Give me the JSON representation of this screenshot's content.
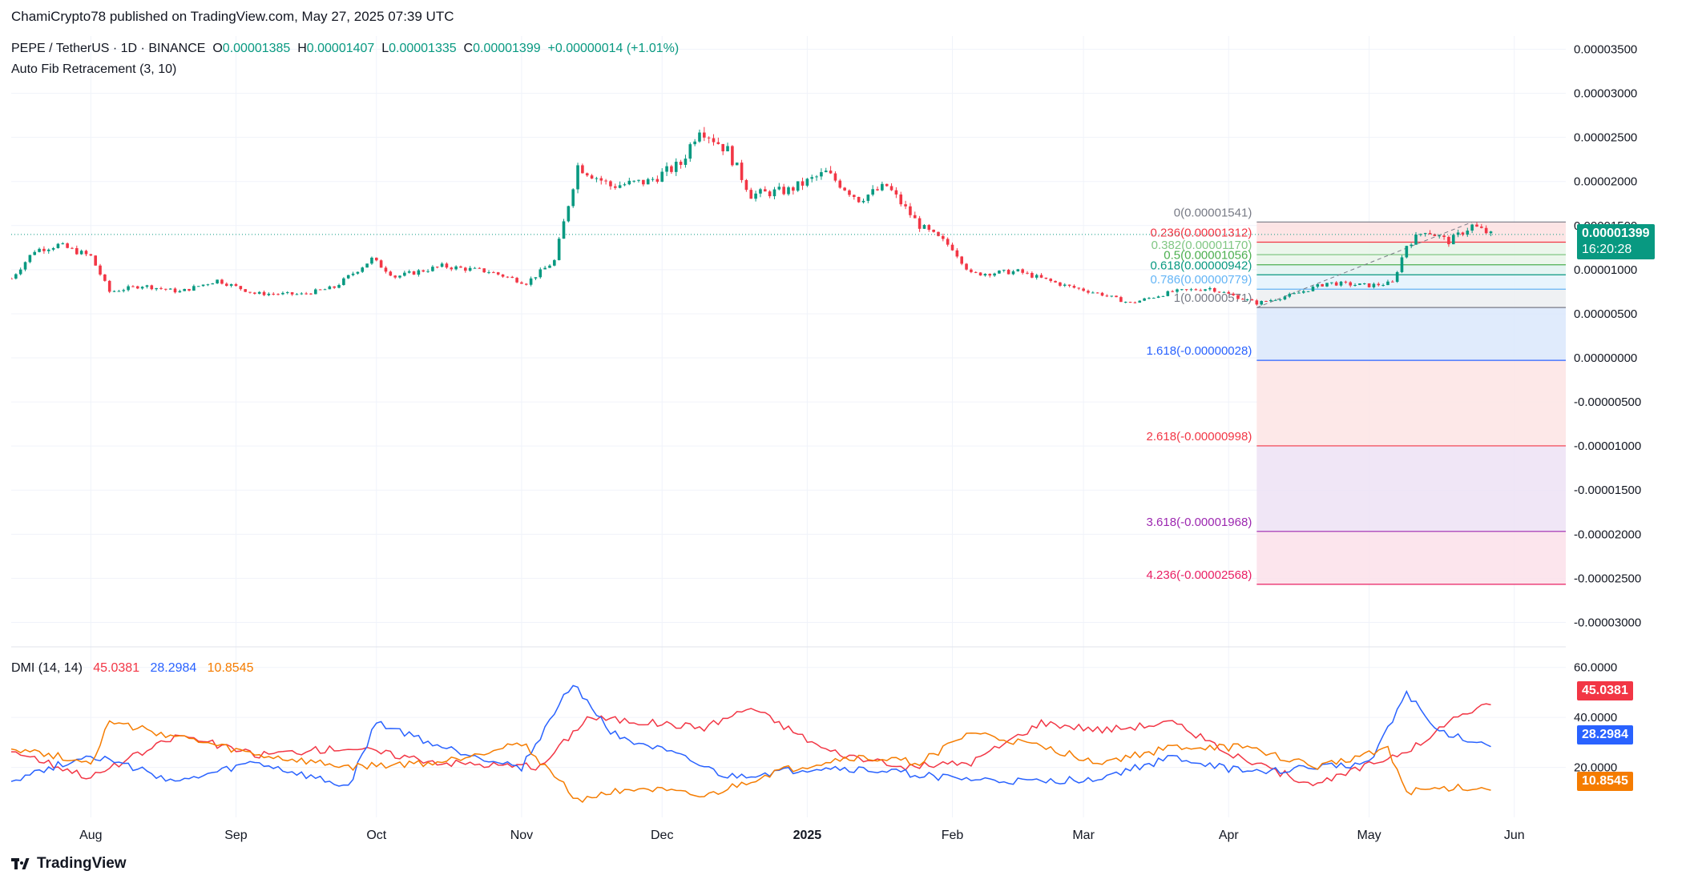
{
  "publisher_line": "ChamiCrypto78 published on TradingView.com, May 27, 2025 07:39 UTC",
  "header": {
    "symbol": "PEPE / TetherUS · 1D · BINANCE",
    "o_label": "O",
    "o_value": "0.00001385",
    "h_label": "H",
    "h_value": "0.00001407",
    "l_label": "L",
    "l_value": "0.00001335",
    "c_label": "C",
    "c_value": "0.00001399",
    "change": "+0.00000014 (+1.01%)",
    "indicator": "Auto Fib Retracement (3, 10)"
  },
  "price_tag": {
    "value": "0.00001399",
    "countdown": "16:20:28",
    "color": "#089981"
  },
  "dmi": {
    "label": "DMI (14, 14)",
    "adx": "45.0381",
    "plus_di": "28.2984",
    "minus_di": "10.8545",
    "colors": {
      "adx": "#f23645",
      "plus_di": "#2962ff",
      "minus_di": "#f57c00"
    }
  },
  "footer": {
    "brand": "TradingView"
  },
  "chart_data": [
    {
      "type": "candlestick",
      "title": "PEPE / TetherUS · 1D · BINANCE",
      "x_labels": [
        "Aug",
        "Sep",
        "Oct",
        "Nov",
        "Dec",
        "2025",
        "Feb",
        "Mar",
        "Apr",
        "May",
        "Jun"
      ],
      "y_ticks": [
        "0.00003500",
        "0.00003000",
        "0.00002500",
        "0.00002000",
        "0.00001500",
        "0.00001000",
        "0.00000500",
        "0.00000000",
        "-0.00000500",
        "-0.00001000",
        "-0.00001500",
        "-0.00002000",
        "-0.00002500",
        "-0.00003000"
      ],
      "ylim": [
        -3.25e-05,
        3.65e-05
      ],
      "last_close": 1.399e-05,
      "close_series": [
        {
          "date": "2024-07-15",
          "close": 9e-06
        },
        {
          "date": "2024-07-20",
          "close": 1.22e-05
        },
        {
          "date": "2024-07-25",
          "close": 1.28e-05
        },
        {
          "date": "2024-08-01",
          "close": 1.15e-05
        },
        {
          "date": "2024-08-05",
          "close": 7.5e-06
        },
        {
          "date": "2024-08-12",
          "close": 8.2e-06
        },
        {
          "date": "2024-08-20",
          "close": 7.5e-06
        },
        {
          "date": "2024-08-28",
          "close": 8.8e-06
        },
        {
          "date": "2024-09-05",
          "close": 7.3e-06
        },
        {
          "date": "2024-09-15",
          "close": 7.2e-06
        },
        {
          "date": "2024-09-22",
          "close": 8e-06
        },
        {
          "date": "2024-09-30",
          "close": 1.12e-05
        },
        {
          "date": "2024-10-05",
          "close": 9.2e-06
        },
        {
          "date": "2024-10-15",
          "close": 1.04e-05
        },
        {
          "date": "2024-10-25",
          "close": 9.8e-06
        },
        {
          "date": "2024-11-02",
          "close": 8.5e-06
        },
        {
          "date": "2024-11-08",
          "close": 1.1e-05
        },
        {
          "date": "2024-11-13",
          "close": 2.18e-05
        },
        {
          "date": "2024-11-20",
          "close": 1.95e-05
        },
        {
          "date": "2024-11-28",
          "close": 2e-05
        },
        {
          "date": "2024-12-05",
          "close": 2.2e-05
        },
        {
          "date": "2024-12-09",
          "close": 2.62e-05
        },
        {
          "date": "2024-12-15",
          "close": 2.35e-05
        },
        {
          "date": "2024-12-20",
          "close": 1.85e-05
        },
        {
          "date": "2024-12-28",
          "close": 1.9e-05
        },
        {
          "date": "2025-01-05",
          "close": 2.1e-05
        },
        {
          "date": "2025-01-12",
          "close": 1.8e-05
        },
        {
          "date": "2025-01-18",
          "close": 1.95e-05
        },
        {
          "date": "2025-01-25",
          "close": 1.5e-05
        },
        {
          "date": "2025-02-01",
          "close": 1.25e-05
        },
        {
          "date": "2025-02-05",
          "close": 9.5e-06
        },
        {
          "date": "2025-02-15",
          "close": 9.8e-06
        },
        {
          "date": "2025-02-25",
          "close": 8.2e-06
        },
        {
          "date": "2025-03-05",
          "close": 7.2e-06
        },
        {
          "date": "2025-03-11",
          "close": 6.2e-06
        },
        {
          "date": "2025-03-20",
          "close": 7.5e-06
        },
        {
          "date": "2025-03-28",
          "close": 7.9e-06
        },
        {
          "date": "2025-04-07",
          "close": 6.2e-06
        },
        {
          "date": "2025-04-15",
          "close": 7.2e-06
        },
        {
          "date": "2025-04-22",
          "close": 8.5e-06
        },
        {
          "date": "2025-05-01",
          "close": 8.2e-06
        },
        {
          "date": "2025-05-06",
          "close": 8.5e-06
        },
        {
          "date": "2025-05-09",
          "close": 1.28e-05
        },
        {
          "date": "2025-05-13",
          "close": 1.45e-05
        },
        {
          "date": "2025-05-18",
          "close": 1.32e-05
        },
        {
          "date": "2025-05-23",
          "close": 1.5e-05
        },
        {
          "date": "2025-05-27",
          "close": 1.399e-05
        }
      ]
    },
    {
      "type": "fibonacci_levels",
      "levels": [
        {
          "ratio": "0",
          "price": 1.541e-05,
          "label": "0(0.00001541)",
          "color": "#787b86"
        },
        {
          "ratio": "0.236",
          "price": 1.312e-05,
          "label": "0.236(0.00001312)",
          "color": "#f23645"
        },
        {
          "ratio": "0.382",
          "price": 1.17e-05,
          "label": "0.382(0.00001170)",
          "color": "#81c784"
        },
        {
          "ratio": "0.5",
          "price": 1.056e-05,
          "label": "0.5(0.00001056)",
          "color": "#4caf50"
        },
        {
          "ratio": "0.618",
          "price": 9.42e-06,
          "label": "0.618(0.00000942)",
          "color": "#089981"
        },
        {
          "ratio": "0.786",
          "price": 7.79e-06,
          "label": "0.786(0.00000779)",
          "color": "#64b5f6"
        },
        {
          "ratio": "1",
          "price": 5.71e-06,
          "label": "1(0.00000571)",
          "color": "#787b86"
        },
        {
          "ratio": "1.618",
          "price": -2.8e-07,
          "label": "1.618(-0.00000028)",
          "color": "#2962ff"
        },
        {
          "ratio": "2.618",
          "price": -9.98e-06,
          "label": "2.618(-0.00000998)",
          "color": "#f23645"
        },
        {
          "ratio": "3.618",
          "price": -1.968e-05,
          "label": "3.618(-0.00001968)",
          "color": "#9c27b0"
        },
        {
          "ratio": "4.236",
          "price": -2.568e-05,
          "label": "4.236(-0.00002568)",
          "color": "#e91e63"
        }
      ]
    },
    {
      "type": "line",
      "title": "DMI (14, 14)",
      "y_ticks": [
        "60.0000",
        "40.0000",
        "20.0000"
      ],
      "ylim": [
        0,
        66
      ],
      "series": [
        {
          "name": "45.0381",
          "color": "#f23645",
          "points": [
            {
              "date": "2024-07-15",
              "y": 27
            },
            {
              "date": "2024-08-01",
              "y": 16
            },
            {
              "date": "2024-08-20",
              "y": 33
            },
            {
              "date": "2024-09-05",
              "y": 25
            },
            {
              "date": "2024-09-25",
              "y": 28
            },
            {
              "date": "2024-10-15",
              "y": 22
            },
            {
              "date": "2024-11-05",
              "y": 20
            },
            {
              "date": "2024-11-15",
              "y": 40
            },
            {
              "date": "2024-11-28",
              "y": 38
            },
            {
              "date": "2024-12-10",
              "y": 36
            },
            {
              "date": "2024-12-20",
              "y": 44
            },
            {
              "date": "2025-01-05",
              "y": 27
            },
            {
              "date": "2025-01-20",
              "y": 20
            },
            {
              "date": "2025-02-05",
              "y": 22
            },
            {
              "date": "2025-02-20",
              "y": 38
            },
            {
              "date": "2025-03-05",
              "y": 35
            },
            {
              "date": "2025-03-20",
              "y": 38
            },
            {
              "date": "2025-04-05",
              "y": 22
            },
            {
              "date": "2025-04-20",
              "y": 13
            },
            {
              "date": "2025-05-05",
              "y": 24
            },
            {
              "date": "2025-05-13",
              "y": 30
            },
            {
              "date": "2025-05-20",
              "y": 41
            },
            {
              "date": "2025-05-27",
              "y": 45.04
            }
          ]
        },
        {
          "name": "28.2984",
          "color": "#2962ff",
          "points": [
            {
              "date": "2024-07-15",
              "y": 15
            },
            {
              "date": "2024-08-01",
              "y": 25
            },
            {
              "date": "2024-08-20",
              "y": 14
            },
            {
              "date": "2024-09-05",
              "y": 22
            },
            {
              "date": "2024-09-25",
              "y": 12
            },
            {
              "date": "2024-10-01",
              "y": 38
            },
            {
              "date": "2024-10-15",
              "y": 28
            },
            {
              "date": "2024-11-01",
              "y": 20
            },
            {
              "date": "2024-11-12",
              "y": 54
            },
            {
              "date": "2024-11-20",
              "y": 34
            },
            {
              "date": "2024-12-05",
              "y": 24
            },
            {
              "date": "2024-12-15",
              "y": 16
            },
            {
              "date": "2025-01-05",
              "y": 20
            },
            {
              "date": "2025-01-20",
              "y": 18
            },
            {
              "date": "2025-02-05",
              "y": 15
            },
            {
              "date": "2025-02-20",
              "y": 14
            },
            {
              "date": "2025-03-05",
              "y": 16
            },
            {
              "date": "2025-03-20",
              "y": 24
            },
            {
              "date": "2025-04-05",
              "y": 18
            },
            {
              "date": "2025-04-20",
              "y": 20
            },
            {
              "date": "2025-05-01",
              "y": 22
            },
            {
              "date": "2025-05-09",
              "y": 50
            },
            {
              "date": "2025-05-15",
              "y": 35
            },
            {
              "date": "2025-05-27",
              "y": 28.3
            }
          ]
        },
        {
          "name": "10.8545",
          "color": "#f57c00",
          "points": [
            {
              "date": "2024-07-15",
              "y": 28
            },
            {
              "date": "2024-08-01",
              "y": 22
            },
            {
              "date": "2024-08-05",
              "y": 38
            },
            {
              "date": "2024-08-20",
              "y": 32
            },
            {
              "date": "2024-09-05",
              "y": 25
            },
            {
              "date": "2024-09-25",
              "y": 20
            },
            {
              "date": "2024-10-15",
              "y": 22
            },
            {
              "date": "2024-11-01",
              "y": 30
            },
            {
              "date": "2024-11-13",
              "y": 7
            },
            {
              "date": "2024-11-25",
              "y": 12
            },
            {
              "date": "2024-12-10",
              "y": 8
            },
            {
              "date": "2024-12-25",
              "y": 18
            },
            {
              "date": "2025-01-10",
              "y": 24
            },
            {
              "date": "2025-01-25",
              "y": 22
            },
            {
              "date": "2025-02-05",
              "y": 34
            },
            {
              "date": "2025-02-20",
              "y": 28
            },
            {
              "date": "2025-03-05",
              "y": 22
            },
            {
              "date": "2025-03-20",
              "y": 28
            },
            {
              "date": "2025-04-05",
              "y": 28
            },
            {
              "date": "2025-04-20",
              "y": 20
            },
            {
              "date": "2025-05-05",
              "y": 28
            },
            {
              "date": "2025-05-09",
              "y": 10
            },
            {
              "date": "2025-05-20",
              "y": 12
            },
            {
              "date": "2025-05-27",
              "y": 10.85
            }
          ]
        }
      ]
    }
  ]
}
